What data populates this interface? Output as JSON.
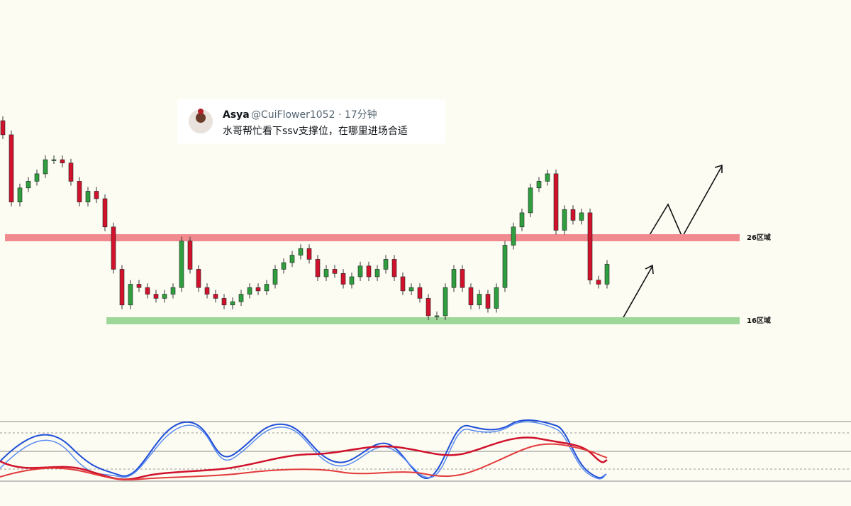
{
  "chart_data": {
    "type": "candlestick",
    "open": 40.1,
    "closes": [
      38.4,
      30.3,
      32.0,
      32.8,
      33.7,
      35.4,
      35.4,
      35.0,
      32.8,
      30.3,
      31.6,
      30.7,
      27.3,
      22.2,
      17.9,
      20.4,
      20.0,
      19.2,
      18.7,
      19.2,
      20.0,
      25.6,
      22.2,
      20.0,
      19.2,
      18.7,
      17.9,
      18.3,
      19.2,
      20.0,
      19.6,
      20.4,
      22.2,
      23.0,
      23.9,
      24.7,
      23.4,
      21.3,
      22.2,
      21.7,
      20.4,
      21.3,
      22.6,
      21.3,
      22.2,
      23.4,
      21.3,
      19.6,
      20.0,
      18.7,
      16.6,
      16.6,
      20.0,
      22.2,
      20.0,
      17.9,
      19.2,
      17.5,
      20.0,
      25.1,
      27.3,
      29.0,
      32.0,
      32.8,
      33.7,
      26.9,
      29.4,
      28.1,
      29.0,
      20.9,
      20.4,
      22.8
    ],
    "up_color": "#2e9e3e",
    "down_color": "#d0122c",
    "levels": [
      {
        "value": 26,
        "label": "26区域",
        "color": "#f08a8f"
      },
      {
        "value": 16,
        "label": "16区域",
        "color": "#9fd69a"
      }
    ]
  },
  "tweet": {
    "name": "Asya",
    "handle": "@CuiFlower1052 · 17分钟",
    "text": "水哥帮忙看下ssv支撑位，在哪里进场合适"
  }
}
